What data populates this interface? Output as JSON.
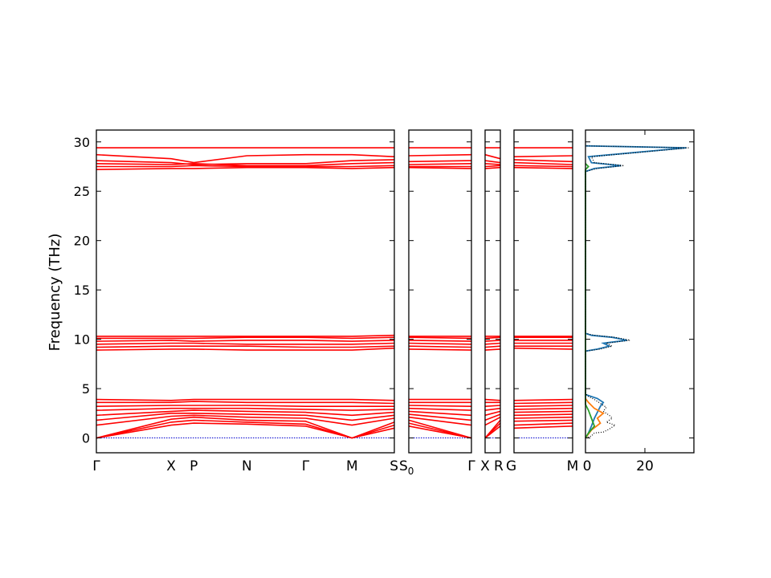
{
  "chart_data": {
    "type": "line",
    "title": "",
    "ylabel": "Frequency (THz)",
    "ylim": [
      -1.5,
      31.2
    ],
    "yticks": [
      0,
      5,
      10,
      15,
      20,
      25,
      30
    ],
    "colors": {
      "bands": "#ff0000",
      "zero_line": "#0000cc",
      "dos_total": "#000000",
      "dos_partial": [
        "#1f77b4",
        "#ff7f0e",
        "#2ca02c"
      ]
    },
    "band_panels": [
      {
        "xlim": [
          0,
          1
        ],
        "ticks": [
          {
            "x": 0.0,
            "label": "Γ"
          },
          {
            "x": 0.251,
            "label": "X"
          },
          {
            "x": 0.327,
            "label": "P"
          },
          {
            "x": 0.505,
            "label": "N"
          },
          {
            "x": 0.702,
            "label": "Γ"
          },
          {
            "x": 0.858,
            "label": "M"
          },
          {
            "x": 1.0,
            "label": "S"
          }
        ]
      },
      {
        "xlim": [
          0,
          1
        ],
        "ticks": [
          {
            "x": 0.0,
            "label": "S",
            "sub": "0"
          },
          {
            "x": 1.0,
            "label": "Γ"
          }
        ]
      },
      {
        "xlim": [
          0,
          1
        ],
        "ticks": [
          {
            "x": 0.0,
            "label": "X"
          },
          {
            "x": 1.0,
            "label": "R"
          }
        ]
      },
      {
        "xlim": [
          0,
          1
        ],
        "ticks": [
          {
            "x": 0.0,
            "label": "G"
          },
          {
            "x": 1.0,
            "label": "M"
          }
        ]
      }
    ],
    "bands": [
      [
        0,
        1.3,
        1.5,
        1.4,
        1.2,
        0,
        1.0,
        1.2,
        0,
        1.2,
        1.0,
        1.2
      ],
      [
        0,
        1.6,
        1.8,
        1.6,
        1.4,
        0,
        1.3,
        1.5,
        0,
        1.5,
        1.3,
        1.5
      ],
      [
        0,
        1.9,
        2.1,
        1.8,
        1.7,
        0,
        1.6,
        1.8,
        0,
        1.8,
        1.7,
        1.8
      ],
      [
        1.3,
        2.2,
        2.3,
        2.1,
        2.0,
        1.3,
        2.0,
        2.1,
        1.3,
        2.1,
        2.0,
        2.1
      ],
      [
        1.8,
        2.5,
        2.5,
        2.4,
        2.3,
        1.8,
        2.3,
        2.4,
        1.8,
        2.4,
        2.3,
        2.4
      ],
      [
        2.3,
        2.7,
        2.8,
        2.7,
        2.6,
        2.3,
        2.6,
        2.7,
        2.3,
        2.7,
        2.6,
        2.7
      ],
      [
        2.8,
        3.0,
        3.0,
        3.0,
        2.9,
        2.8,
        2.9,
        3.0,
        2.8,
        3.0,
        2.9,
        3.0
      ],
      [
        3.2,
        3.3,
        3.3,
        3.3,
        3.2,
        3.2,
        3.2,
        3.3,
        3.2,
        3.3,
        3.2,
        3.3
      ],
      [
        3.6,
        3.6,
        3.7,
        3.6,
        3.6,
        3.6,
        3.5,
        3.6,
        3.6,
        3.6,
        3.5,
        3.6
      ],
      [
        3.9,
        3.8,
        3.9,
        3.9,
        3.9,
        3.9,
        3.8,
        3.9,
        3.9,
        3.8,
        3.8,
        3.9
      ],
      [
        8.9,
        9.0,
        9.0,
        8.9,
        8.9,
        8.9,
        9.1,
        9.0,
        8.9,
        9.0,
        9.1,
        9.0
      ],
      [
        9.2,
        9.3,
        9.3,
        9.3,
        9.2,
        9.2,
        9.3,
        9.3,
        9.2,
        9.3,
        9.3,
        9.3
      ],
      [
        9.5,
        9.6,
        9.6,
        9.5,
        9.5,
        9.5,
        9.6,
        9.6,
        9.5,
        9.6,
        9.6,
        9.6
      ],
      [
        9.8,
        9.9,
        9.8,
        9.9,
        9.9,
        9.8,
        9.9,
        9.9,
        9.8,
        9.9,
        9.9,
        9.9
      ],
      [
        10.1,
        10.1,
        10.1,
        10.2,
        10.2,
        10.1,
        10.2,
        10.2,
        10.1,
        10.2,
        10.2,
        10.2
      ],
      [
        10.3,
        10.3,
        10.3,
        10.3,
        10.3,
        10.3,
        10.4,
        10.3,
        10.3,
        10.3,
        10.3,
        10.3
      ],
      [
        27.2,
        27.3,
        27.3,
        27.4,
        27.4,
        27.3,
        27.4,
        27.4,
        27.3,
        27.4,
        27.4,
        27.3
      ],
      [
        27.5,
        27.5,
        27.6,
        27.5,
        27.5,
        27.5,
        27.6,
        27.5,
        27.5,
        27.6,
        27.6,
        27.5
      ],
      [
        27.8,
        27.7,
        27.8,
        27.6,
        27.6,
        27.8,
        27.9,
        27.7,
        27.8,
        27.7,
        27.9,
        27.7
      ],
      [
        28.1,
        27.9,
        27.7,
        27.8,
        27.8,
        28.1,
        28.2,
        28.0,
        28.1,
        27.9,
        28.2,
        28.0
      ],
      [
        28.7,
        28.3,
        27.9,
        28.6,
        28.7,
        28.7,
        28.5,
        28.6,
        28.7,
        28.3,
        28.5,
        28.6
      ],
      [
        29.4,
        29.4,
        29.4,
        29.4,
        29.4,
        29.4,
        29.4,
        29.4,
        29.4,
        29.4,
        29.4,
        29.4
      ]
    ],
    "dos": {
      "xlim": [
        0,
        36.5
      ],
      "xticks": [
        0,
        20
      ],
      "total": [
        [
          0,
          0
        ],
        [
          2,
          0.2
        ],
        [
          3,
          0.5
        ],
        [
          6,
          0.6
        ],
        [
          8,
          0.9
        ],
        [
          10,
          1.3
        ],
        [
          7,
          1.6
        ],
        [
          9,
          2.0
        ],
        [
          8,
          2.3
        ],
        [
          6,
          2.7
        ],
        [
          7,
          3.1
        ],
        [
          5,
          3.5
        ],
        [
          3,
          3.9
        ],
        [
          1,
          4.2
        ],
        [
          0,
          4.5
        ],
        [
          0,
          8.8
        ],
        [
          5,
          9.0
        ],
        [
          9,
          9.3
        ],
        [
          7,
          9.6
        ],
        [
          15,
          9.9
        ],
        [
          10,
          10.2
        ],
        [
          3,
          10.4
        ],
        [
          0,
          10.6
        ],
        [
          0,
          27.0
        ],
        [
          4,
          27.3
        ],
        [
          13,
          27.6
        ],
        [
          3,
          27.9
        ],
        [
          2,
          28.5
        ],
        [
          35,
          29.4
        ],
        [
          0,
          29.6
        ]
      ],
      "partial": [
        {
          "points": [
            [
              0,
              0
            ],
            [
              1,
              0.5
            ],
            [
              2,
              1.2
            ],
            [
              3,
              2.0
            ],
            [
              4,
              2.6
            ],
            [
              5,
              3.2
            ],
            [
              6,
              3.6
            ],
            [
              4,
              4.0
            ],
            [
              0,
              4.4
            ],
            [
              0,
              8.8
            ],
            [
              4,
              9.0
            ],
            [
              8,
              9.3
            ],
            [
              6,
              9.6
            ],
            [
              14,
              9.9
            ],
            [
              9,
              10.2
            ],
            [
              2,
              10.4
            ],
            [
              0,
              10.6
            ],
            [
              0,
              27.0
            ],
            [
              3,
              27.3
            ],
            [
              12,
              27.6
            ],
            [
              2,
              27.9
            ],
            [
              1,
              28.5
            ],
            [
              34,
              29.4
            ],
            [
              0,
              29.6
            ]
          ]
        },
        {
          "points": [
            [
              0,
              0
            ],
            [
              2,
              0.8
            ],
            [
              5,
              1.5
            ],
            [
              4,
              2.0
            ],
            [
              6,
              2.5
            ],
            [
              3,
              3.0
            ],
            [
              1,
              3.6
            ],
            [
              0,
              4.0
            ]
          ]
        },
        {
          "points": [
            [
              0,
              0
            ],
            [
              1,
              0.5
            ],
            [
              3,
              1.2
            ],
            [
              2,
              2.0
            ],
            [
              1,
              2.8
            ],
            [
              0,
              3.4
            ],
            [
              0,
              27.2
            ],
            [
              1,
              27.5
            ],
            [
              0,
              27.8
            ]
          ]
        }
      ]
    }
  }
}
